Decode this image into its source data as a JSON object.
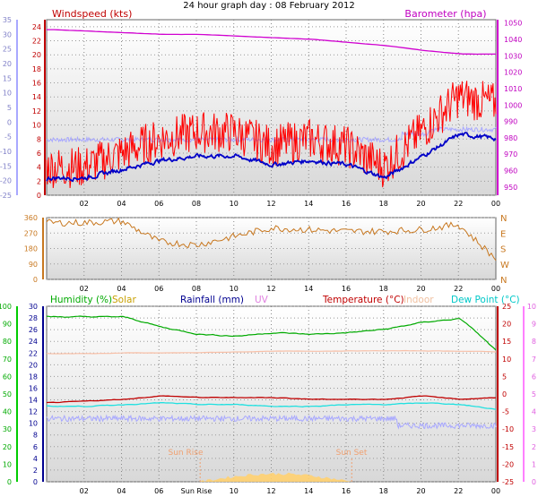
{
  "title": "24 hour graph day : 08 February 2012",
  "top_panel": {
    "left_label": "Windspeed (kts)",
    "right_label": "Barometer (hpa)",
    "left_ticks": [
      "0",
      "2",
      "4",
      "6",
      "8",
      "10",
      "12",
      "14",
      "16",
      "18",
      "20",
      "22",
      "24"
    ],
    "right_ticks": [
      "950",
      "960",
      "970",
      "980",
      "990",
      "1000",
      "1010",
      "1020",
      "1030",
      "1040",
      "1050"
    ],
    "far_left_ticks": [
      "35",
      "30",
      "25",
      "20",
      "15",
      "10",
      "5",
      "0",
      "-5",
      "-10",
      "-15",
      "-20",
      "-25"
    ]
  },
  "dir_panel": {
    "left_ticks": [
      "0",
      "90",
      "180",
      "270",
      "360"
    ],
    "right_labels": [
      "N",
      "E",
      "S",
      "W",
      "N"
    ]
  },
  "bottom_panel": {
    "legend": [
      {
        "text": "Humidity (%)",
        "color": "#00aa00"
      },
      {
        "text": "Solar",
        "color": "#c8a000"
      },
      {
        "text": "Rainfall (mm)",
        "color": "#000090"
      },
      {
        "text": "UV",
        "color": "#e080e0"
      },
      {
        "text": "Temperature (°C)",
        "color": "#c00000"
      },
      {
        "text": "Indoor",
        "color": "#f0c0a0"
      },
      {
        "text": "Dew Point (°C)",
        "color": "#00c8c8"
      }
    ],
    "humidity_ticks": [
      "0",
      "10",
      "20",
      "30",
      "40",
      "50",
      "60",
      "70",
      "80",
      "90",
      "100"
    ],
    "rain_ticks": [
      "0",
      "2",
      "4",
      "6",
      "8",
      "10",
      "12",
      "14",
      "16",
      "18",
      "20",
      "22",
      "24",
      "26",
      "28",
      "30"
    ],
    "temp_ticks": [
      "25",
      "20",
      "15",
      "10",
      "5",
      "0",
      "-5",
      "-10",
      "-15",
      "-20",
      "-25"
    ],
    "uv_ticks": [
      "10",
      "9",
      "8",
      "7",
      "6",
      "5",
      "4",
      "3",
      "2",
      "1",
      "0"
    ],
    "sun_rise": "Sun Rise",
    "sun_set": "Sun Set"
  },
  "x_ticks_top": [
    "02",
    "04",
    "06",
    "08",
    "10",
    "12",
    "14",
    "16",
    "18",
    "20",
    "22",
    "00"
  ],
  "x_ticks_bottom": [
    "02",
    "04",
    "06",
    "Sun Rise",
    "10",
    "12",
    "14",
    "16",
    "18",
    "20",
    "22",
    "00"
  ],
  "colors": {
    "windspeed": "#ff0000",
    "avg_wind": "#0000c8",
    "barometer": "#d000d0",
    "pale_line": "#a8a8ff",
    "direction": "#c87820",
    "humidity": "#00aa00",
    "temperature": "#c00000",
    "dewpoint": "#20e0e0",
    "indoor": "#f8c0a8",
    "solar": "#ffd070"
  },
  "chart_data": [
    {
      "type": "line",
      "title": "24 hour graph day : 08 February 2012",
      "ylabel": "Windspeed (kts)",
      "y2label": "Barometer (hpa)",
      "x": [
        "00",
        "02",
        "04",
        "06",
        "08",
        "10",
        "12",
        "14",
        "16",
        "18",
        "20",
        "22",
        "00"
      ],
      "ylim": [
        0,
        25
      ],
      "y2lim": [
        945,
        1052
      ],
      "series": [
        {
          "name": "Windspeed (kts)",
          "values": [
            4,
            4,
            6,
            8,
            9,
            9,
            7,
            8,
            7,
            4,
            9,
            14,
            13
          ]
        },
        {
          "name": "Barometer (hpa)",
          "values": [
            1046,
            1045,
            1044,
            1043,
            1043,
            1042,
            1041,
            1040,
            1038,
            1036,
            1033,
            1031,
            1031
          ]
        }
      ]
    },
    {
      "type": "line",
      "x": [
        "00",
        "02",
        "04",
        "06",
        "08",
        "10",
        "12",
        "14",
        "16",
        "18",
        "20",
        "22",
        "00"
      ],
      "ylim": [
        0,
        360
      ],
      "series": [
        {
          "values": [
            330,
            330,
            340,
            220,
            200,
            250,
            300,
            290,
            280,
            280,
            290,
            320,
            120
          ]
        }
      ]
    },
    {
      "type": "line",
      "x": [
        "00",
        "02",
        "04",
        "06",
        "08",
        "10",
        "12",
        "14",
        "16",
        "18",
        "20",
        "22",
        "00"
      ],
      "ylim": [
        0,
        100
      ],
      "series": [
        {
          "name": "Humidity (%)",
          "values": [
            94,
            94,
            94,
            88,
            84,
            83,
            85,
            84,
            85,
            87,
            91,
            93,
            73
          ]
        },
        {
          "name": "Temperature (°C)",
          "values": [
            -2.5,
            -2,
            -1.5,
            -0.5,
            -1,
            -1,
            -1,
            -1.5,
            -1.5,
            -1.5,
            -0.5,
            -1.5,
            -1
          ]
        },
        {
          "name": "Dew Point (°C)",
          "values": [
            -3.5,
            -3.5,
            -3,
            -2.5,
            -3,
            -3,
            -3.5,
            -3.5,
            -3,
            -3,
            -2.5,
            -3,
            -4.5
          ]
        },
        {
          "name": "Indoor",
          "values": [
            11.5,
            11.5,
            11.7,
            11.7,
            11.8,
            12,
            12.2,
            12.2,
            12.3,
            12.3,
            12.3,
            12.2,
            12
          ]
        }
      ]
    }
  ]
}
